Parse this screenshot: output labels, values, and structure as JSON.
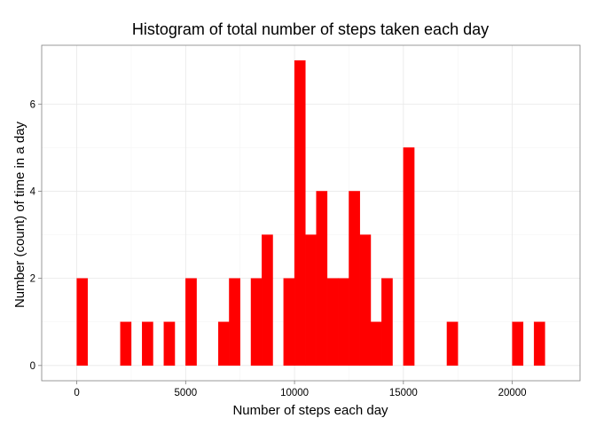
{
  "chart_data": {
    "type": "bar",
    "title": "Histogram of total number of steps taken each day",
    "xlabel": "Number of steps each day",
    "ylabel": "Number (count) of time in a day",
    "bin_width": 500,
    "bins": [
      {
        "x0": 0,
        "x1": 500,
        "count": 2
      },
      {
        "x0": 2000,
        "x1": 2500,
        "count": 1
      },
      {
        "x0": 3000,
        "x1": 3500,
        "count": 1
      },
      {
        "x0": 4000,
        "x1": 4500,
        "count": 1
      },
      {
        "x0": 5000,
        "x1": 5500,
        "count": 2
      },
      {
        "x0": 6500,
        "x1": 7000,
        "count": 1
      },
      {
        "x0": 7000,
        "x1": 7500,
        "count": 2
      },
      {
        "x0": 8000,
        "x1": 8500,
        "count": 2
      },
      {
        "x0": 8500,
        "x1": 9000,
        "count": 3
      },
      {
        "x0": 9500,
        "x1": 10000,
        "count": 2
      },
      {
        "x0": 10000,
        "x1": 10500,
        "count": 7
      },
      {
        "x0": 10500,
        "x1": 11000,
        "count": 3
      },
      {
        "x0": 11000,
        "x1": 11500,
        "count": 4
      },
      {
        "x0": 11500,
        "x1": 12000,
        "count": 2
      },
      {
        "x0": 12000,
        "x1": 12500,
        "count": 2
      },
      {
        "x0": 12500,
        "x1": 13000,
        "count": 4
      },
      {
        "x0": 13000,
        "x1": 13500,
        "count": 3
      },
      {
        "x0": 13500,
        "x1": 14000,
        "count": 1
      },
      {
        "x0": 14000,
        "x1": 14500,
        "count": 2
      },
      {
        "x0": 15000,
        "x1": 15500,
        "count": 5
      },
      {
        "x0": 17000,
        "x1": 17500,
        "count": 1
      },
      {
        "x0": 20000,
        "x1": 20500,
        "count": 1
      },
      {
        "x0": 21000,
        "x1": 21500,
        "count": 1
      }
    ],
    "xlim": [
      -1612.5,
      23112.5
    ],
    "ylim": [
      -0.35,
      7.35
    ],
    "xticks": [
      0,
      5000,
      10000,
      15000,
      20000
    ],
    "xtick_labels": [
      "0",
      "5000",
      "10000",
      "15000",
      "20000"
    ],
    "yticks": [
      0,
      2,
      4,
      6
    ],
    "ytick_labels": [
      "0",
      "2",
      "4",
      "6"
    ],
    "bar_color": "#ff0000",
    "grid": true,
    "legend": "none"
  }
}
